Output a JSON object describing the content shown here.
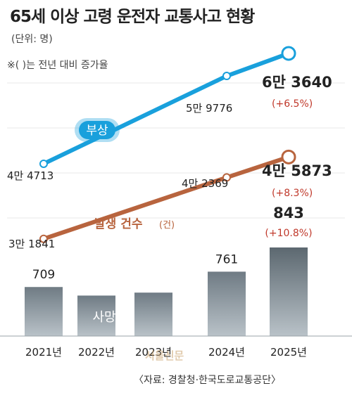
{
  "header": {
    "title": "65세 이상 고령 운전자 교통사고 현황",
    "unit": "(단위: 명)",
    "note": "※(  )는 전년 대비 증가율"
  },
  "footer": {
    "source": "〈자료: 경찰청·한국도로교통공단〉",
    "watermark": "서울신문"
  },
  "colors": {
    "injury_line": "#19a0dc",
    "accident_line": "#b8643e",
    "death_bar": "#6b7780",
    "growth_text": "#c0392b"
  },
  "chart_data": [
    {
      "type": "line",
      "x": [
        "2021년",
        "2022년",
        "2023년",
        "2024년",
        "2025년"
      ],
      "series": [
        {
          "name": "부상",
          "values": [
            44713,
            null,
            null,
            59776,
            63640
          ],
          "labels": [
            "4만 4713",
            "",
            "",
            "5만 9776",
            "6만 3640"
          ],
          "growth": "(+6.5%)"
        },
        {
          "name": "발생 건수",
          "name_suffix": "(건)",
          "values": [
            31841,
            null,
            null,
            42369,
            45873
          ],
          "labels": [
            "3만 1841",
            "",
            "",
            "4만 2369",
            "4만 5873"
          ],
          "growth": "(+8.3%)"
        }
      ]
    },
    {
      "type": "bar",
      "categories": [
        "2021년",
        "2022년",
        "2023년",
        "2024년",
        "2025년"
      ],
      "series": [
        {
          "name": "사망",
          "values": [
            709,
            680,
            690,
            761,
            843
          ],
          "labels": [
            "709",
            "",
            "",
            "761",
            "843"
          ],
          "growth": "(+10.8%)"
        }
      ]
    }
  ]
}
